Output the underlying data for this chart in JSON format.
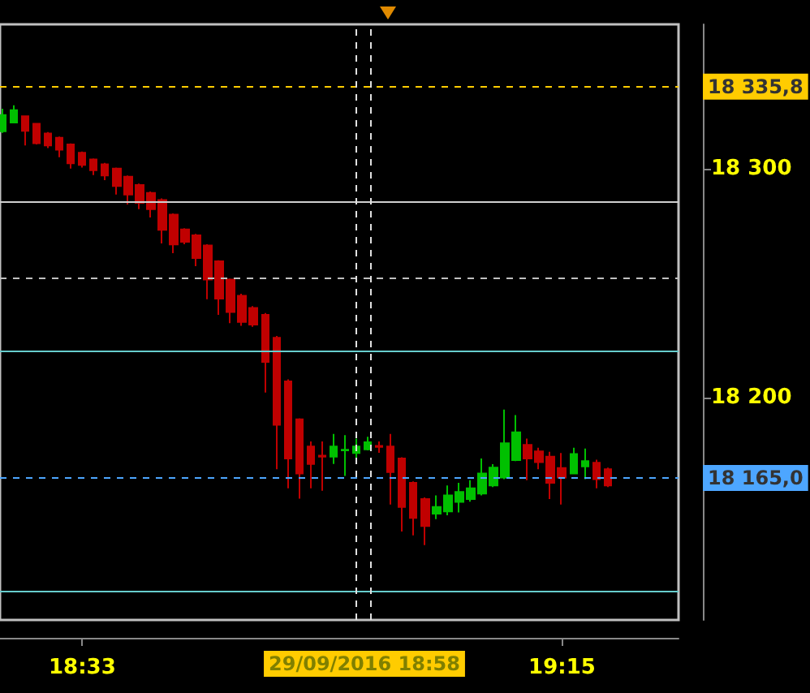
{
  "chart_data": {
    "type": "candlestick",
    "x": [
      18.4333,
      18.45,
      18.4667,
      18.4833,
      18.5,
      18.5167,
      18.5333,
      18.55,
      18.5667,
      18.5833,
      18.6,
      18.6167,
      18.6333,
      18.65,
      18.6667,
      18.6833,
      18.7,
      18.7167,
      18.7333,
      18.75,
      18.7667,
      18.7833,
      18.8,
      18.8167,
      18.8333,
      18.85,
      18.8667,
      18.8833,
      18.9,
      18.9167,
      18.9333,
      18.95,
      18.9667,
      18.9833,
      19.0,
      19.0167,
      19.0333,
      19.05,
      19.0667,
      19.0833,
      19.1,
      19.1167,
      19.1333,
      19.15,
      19.1667,
      19.1833,
      19.2,
      19.2167,
      19.2333,
      19.25,
      19.2667,
      19.2833,
      19.3,
      19.3167
    ],
    "ohlc": [
      [
        18316.3,
        18326.2,
        18315.6,
        18323.4
      ],
      [
        18320.1,
        18327.7,
        18319.9,
        18325.5
      ],
      [
        18322.9,
        18323.0,
        18310.1,
        18316.5
      ],
      [
        18319.6,
        18320.0,
        18310.6,
        18311.1
      ],
      [
        18315.4,
        18316.0,
        18309.0,
        18310.1
      ],
      [
        18313.5,
        18314.0,
        18305.0,
        18308.3
      ],
      [
        18310.6,
        18311.0,
        18300.0,
        18302.3
      ],
      [
        18306.9,
        18307.5,
        18300.5,
        18301.6
      ],
      [
        18304.0,
        18304.5,
        18297.2,
        18299.3
      ],
      [
        18301.9,
        18302.5,
        18295.0,
        18297.0
      ],
      [
        18300.0,
        18300.5,
        18288.7,
        18292.4
      ],
      [
        18296.5,
        18297.0,
        18284.4,
        18288.7
      ],
      [
        18292.9,
        18293.5,
        18282.3,
        18285.1
      ],
      [
        18289.4,
        18290.0,
        18278.7,
        18282.3
      ],
      [
        18286.3,
        18287.0,
        18267.4,
        18273.3
      ],
      [
        18279.9,
        18280.5,
        18263.1,
        18266.9
      ],
      [
        18273.5,
        18274.0,
        18267.0,
        18268.1
      ],
      [
        18270.9,
        18271.5,
        18257.4,
        18261.0
      ],
      [
        18266.5,
        18267.0,
        18243.0,
        18251.6
      ],
      [
        18259.6,
        18260.0,
        18236.2,
        18243.3
      ],
      [
        18251.6,
        18252.0,
        18232.6,
        18237.4
      ],
      [
        18244.5,
        18245.4,
        18231.4,
        18233.1
      ],
      [
        18239.2,
        18240.0,
        18231.0,
        18231.9
      ],
      [
        18236.2,
        18237.0,
        18202.3,
        18215.6
      ],
      [
        18226.2,
        18227.0,
        18168.8,
        18188.2
      ],
      [
        18207.1,
        18208.0,
        18160.5,
        18173.5
      ],
      [
        18190.6,
        18191.0,
        18156.0,
        18166.9
      ],
      [
        18178.7,
        18180.9,
        18160.5,
        18171.1
      ],
      [
        18174.7,
        18180.9,
        18159.4,
        18174.3
      ],
      [
        18174.3,
        18184.2,
        18171.1,
        18178.7
      ],
      [
        18177.0,
        18183.7,
        18165.9,
        18177.3
      ],
      [
        18175.9,
        18182.2,
        18172.7,
        18178.7
      ],
      [
        18177.5,
        18183.0,
        18177.0,
        18180.6
      ],
      [
        18179.0,
        18180.9,
        18176.0,
        18178.5
      ],
      [
        18178.7,
        18184.2,
        18153.4,
        18167.6
      ],
      [
        18173.5,
        18174.0,
        18141.6,
        18152.3
      ],
      [
        18162.9,
        18163.5,
        18139.9,
        18147.5
      ],
      [
        18155.8,
        18156.5,
        18135.7,
        18144.0
      ],
      [
        18149.4,
        18157.4,
        18147.0,
        18152.3
      ],
      [
        18150.4,
        18161.7,
        18148.7,
        18157.4
      ],
      [
        18154.5,
        18162.9,
        18149.9,
        18158.9
      ],
      [
        18155.8,
        18164.0,
        18154.6,
        18160.5
      ],
      [
        18158.2,
        18173.5,
        18157.4,
        18166.9
      ],
      [
        18161.7,
        18171.0,
        18161.0,
        18169.5
      ],
      [
        18165.2,
        18194.8,
        18164.5,
        18180.1
      ],
      [
        18172.8,
        18192.4,
        18172.3,
        18184.9
      ],
      [
        18179.4,
        18182.2,
        18164.0,
        18173.5
      ],
      [
        18176.6,
        18178.2,
        18168.8,
        18171.9
      ],
      [
        18174.3,
        18176.4,
        18155.8,
        18162.9
      ],
      [
        18169.3,
        18175.9,
        18153.4,
        18165.2
      ],
      [
        18166.9,
        18178.2,
        18166.7,
        18175.4
      ],
      [
        18170.0,
        18177.8,
        18164.5,
        18172.3
      ],
      [
        18171.6,
        18173.0,
        18160.5,
        18164.5
      ],
      [
        18168.8,
        18169.5,
        18161.0,
        18161.7
      ]
    ],
    "colors": [
      "#00c000",
      "#00c000",
      "#c00000",
      "#c00000",
      "#c00000",
      "#c00000",
      "#c00000",
      "#c00000",
      "#c00000",
      "#c00000",
      "#c00000",
      "#c00000",
      "#c00000",
      "#c00000",
      "#c00000",
      "#c00000",
      "#c00000",
      "#c00000",
      "#c00000",
      "#c00000",
      "#c00000",
      "#c00000",
      "#c00000",
      "#c00000",
      "#c00000",
      "#c00000",
      "#c00000",
      "#c00000",
      "#c00000",
      "#00c000",
      "#00c000",
      "#00c000",
      "#00c000",
      "#c00000",
      "#c00000",
      "#c00000",
      "#c00000",
      "#c00000",
      "#00c000",
      "#00c000",
      "#00c000",
      "#00c000",
      "#00c000",
      "#00c000",
      "#00c000",
      "#00c000",
      "#c00000",
      "#c00000",
      "#c00000",
      "#c00000",
      "#00c000",
      "#00c000",
      "#c00000",
      "#c00000"
    ],
    "xlim": [
      18.43,
      19.42
    ],
    "xticks": [
      {
        "value": 18.55,
        "label": "18:33"
      },
      {
        "value": 19.25,
        "label": "19:15"
      }
    ],
    "ylim": [
      18103,
      18363
    ],
    "yticks": [
      {
        "value": 18300,
        "label": "18 300"
      },
      {
        "value": 18200,
        "label": "18 200"
      }
    ],
    "ref_lines": [
      {
        "axis": "y",
        "value": 18335.8,
        "label": "18 335,8",
        "color": "#ffcc00",
        "line_style": "dashed"
      },
      {
        "axis": "y",
        "value": 18165.0,
        "label": "18 165,0",
        "color": "#4da6ff",
        "line_style": "dashed"
      },
      {
        "axis": "y",
        "value": 18285.8,
        "color": "#d0d0d0",
        "line_style": "solid"
      },
      {
        "axis": "y",
        "value": 18252.5,
        "color": "#c0c0c0",
        "line_style": "dashed"
      },
      {
        "axis": "y",
        "value": 18220.6,
        "color": "#66cccc",
        "line_style": "solid"
      },
      {
        "axis": "y",
        "value": 18115.6,
        "color": "#66cccc",
        "line_style": "solid"
      },
      {
        "axis": "x",
        "value": 18.9534,
        "color": "#e0e0e0",
        "line_style": "dashed"
      },
      {
        "axis": "x",
        "value": 18.97,
        "color": "#e0e0e0",
        "line_style": "dashed"
      }
    ],
    "annotations": [
      "29/09/2016 18:58"
    ]
  }
}
